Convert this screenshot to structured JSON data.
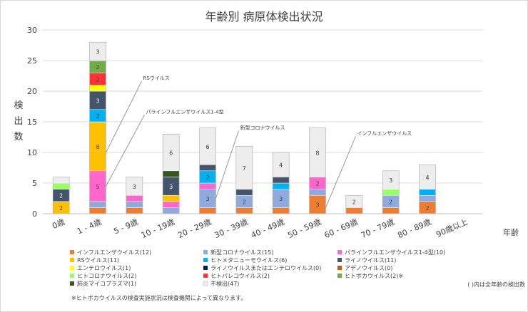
{
  "chart_data": {
    "type": "bar",
    "stacked": true,
    "title": "年齢別 病原体検出状況",
    "ylabel": "検出数",
    "xlabel": "年齢",
    "ylim": [
      0,
      30
    ],
    "yticks": [
      0,
      5,
      10,
      15,
      20,
      25,
      30
    ],
    "grid": true,
    "legend_position": "bottom",
    "categories": [
      "0歳",
      "1 - 4歳",
      "5 - 9歳",
      "10 - 19歳",
      "20 - 29歳",
      "30 - 39歳",
      "40 - 49歳",
      "50 - 59歳",
      "60 - 69歳",
      "70 - 79歳",
      "80 - 89歳",
      "90歳以上"
    ],
    "series": [
      {
        "name": "インフルエンザウイルス(12)",
        "color": "#ED7D31",
        "values": [
          0,
          1,
          1,
          0,
          1,
          1,
          1,
          3,
          1,
          1,
          2,
          0
        ]
      },
      {
        "name": "新型コロナウイルス(15)",
        "color": "#8FAADC",
        "values": [
          0,
          1,
          1,
          1,
          3,
          2,
          3,
          1,
          0,
          2,
          1,
          0
        ]
      },
      {
        "name": "パラインフルエンザウイルス1-4型(10)",
        "color": "#FF66CC",
        "values": [
          0,
          5,
          1,
          1,
          1,
          0,
          0,
          2,
          0,
          0,
          0,
          0
        ]
      },
      {
        "name": "RSウイルス(11)",
        "color": "#FFC000",
        "values": [
          2,
          8,
          0,
          1,
          0,
          0,
          0,
          0,
          0,
          0,
          0,
          0
        ]
      },
      {
        "name": "ヒトメタニューモウイルス(6)",
        "color": "#00B0F0",
        "values": [
          0,
          2,
          0,
          0,
          2,
          0,
          1,
          0,
          0,
          0,
          1,
          0
        ]
      },
      {
        "name": "ライノウイルス(11)",
        "color": "#44546A",
        "values": [
          2,
          3,
          0,
          3,
          1,
          1,
          1,
          0,
          0,
          0,
          0,
          0
        ]
      },
      {
        "name": "エンテロウイルス(1)",
        "color": "#FFFF00",
        "values": [
          0,
          1,
          0,
          0,
          0,
          0,
          0,
          0,
          0,
          0,
          0,
          0
        ]
      },
      {
        "name": "ライノウイルスまたはエンテロウイルス(0)",
        "color": "#002060",
        "values": [
          0,
          0,
          0,
          0,
          0,
          0,
          0,
          0,
          0,
          0,
          0,
          0
        ]
      },
      {
        "name": "アデノウイルス(0)",
        "color": "#C55A11",
        "values": [
          0,
          0,
          0,
          0,
          0,
          0,
          0,
          0,
          0,
          0,
          0,
          0
        ]
      },
      {
        "name": "ヒトコロナウイルス(2)",
        "color": "#99FF66",
        "values": [
          1,
          0,
          0,
          0,
          0,
          0,
          0,
          0,
          0,
          1,
          0,
          0
        ]
      },
      {
        "name": "ヒトパレコウイルス(2)",
        "color": "#FF3333",
        "values": [
          0,
          2,
          0,
          0,
          0,
          0,
          0,
          0,
          0,
          0,
          0,
          0
        ]
      },
      {
        "name": "ヒトボカウイルス(2)※",
        "color": "#70AD47",
        "values": [
          0,
          2,
          0,
          0,
          0,
          0,
          0,
          0,
          0,
          0,
          0,
          0
        ]
      },
      {
        "name": "肺炎マイコプラズマ(1)",
        "color": "#375623",
        "values": [
          0,
          0,
          0,
          1,
          0,
          0,
          0,
          0,
          0,
          0,
          0,
          0
        ]
      },
      {
        "name": "不検出(47)",
        "color": "#EDEDED",
        "values": [
          1,
          3,
          3,
          6,
          6,
          7,
          4,
          8,
          2,
          3,
          4,
          0
        ]
      }
    ],
    "data_labels": [
      {
        "category": 0,
        "series": 0,
        "text": ""
      },
      {
        "category": 0,
        "series": 3,
        "text": "2"
      },
      {
        "category": 0,
        "series": 5,
        "text": "2"
      },
      {
        "category": 1,
        "series": 2,
        "text": "5"
      },
      {
        "category": 1,
        "series": 3,
        "text": "8"
      },
      {
        "category": 1,
        "series": 4,
        "text": "2"
      },
      {
        "category": 1,
        "series": 5,
        "text": "3"
      },
      {
        "category": 1,
        "series": 10,
        "text": "2"
      },
      {
        "category": 1,
        "series": 11,
        "text": "2"
      },
      {
        "category": 1,
        "series": 13,
        "text": "3"
      },
      {
        "category": 2,
        "series": 13,
        "text": "3"
      },
      {
        "category": 3,
        "series": 5,
        "text": "3"
      },
      {
        "category": 3,
        "series": 13,
        "text": "6"
      },
      {
        "category": 4,
        "series": 1,
        "text": "3"
      },
      {
        "category": 4,
        "series": 4,
        "text": "2"
      },
      {
        "category": 4,
        "series": 13,
        "text": "6"
      },
      {
        "category": 5,
        "series": 1,
        "text": "2"
      },
      {
        "category": 5,
        "series": 13,
        "text": "7"
      },
      {
        "category": 6,
        "series": 1,
        "text": "3"
      },
      {
        "category": 6,
        "series": 13,
        "text": "4"
      },
      {
        "category": 7,
        "series": 0,
        "text": "3"
      },
      {
        "category": 7,
        "series": 2,
        "text": "2"
      },
      {
        "category": 7,
        "series": 13,
        "text": "8"
      },
      {
        "category": 8,
        "series": 13,
        "text": "2"
      },
      {
        "category": 9,
        "series": 1,
        "text": "2"
      },
      {
        "category": 9,
        "series": 13,
        "text": "3"
      },
      {
        "category": 10,
        "series": 0,
        "text": "2"
      },
      {
        "category": 10,
        "series": 13,
        "text": "4"
      }
    ],
    "annotations": [
      {
        "text": "RSウイルス",
        "category": 1,
        "value": 10
      },
      {
        "text": "パラインフルエンザウイルス1-4型",
        "category": 1,
        "value": 4.5
      },
      {
        "text": "新型コロナウイルス",
        "category": 4,
        "value": 2.5
      },
      {
        "text": "インフルエンザウイルス",
        "category": 7,
        "value": 1
      }
    ],
    "notes": [
      "( )内は全年齢の検出数",
      "※ヒトボカウイルスの検査実施状況は検査機関によって異なります。"
    ]
  }
}
